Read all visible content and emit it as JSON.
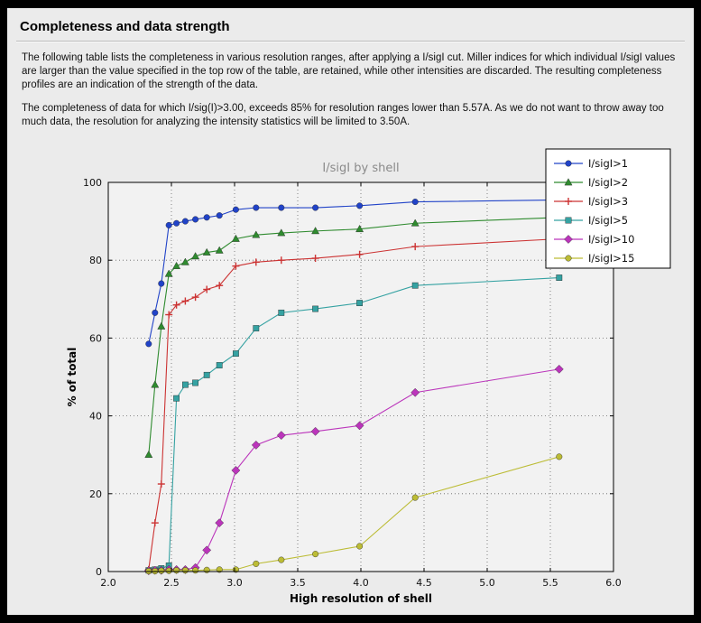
{
  "page": {
    "title": "Completeness and data strength",
    "paragraph1": "The following table lists the completeness in various resolution ranges, after applying a I/sigI cut. Miller indices for which individual I/sigI values are larger than the value specified in the top row of the table, are retained, while other intensities are discarded. The resulting completeness profiles are an indication of the strength of the data.",
    "paragraph2": "The completeness of data for which I/sig(I)>3.00, exceeds  85% for resolution ranges lower than 5.57A. As we do not want to throw away too much data, the resolution for analyzing the intensity statistics will be limited to 3.50A."
  },
  "chart_data": {
    "type": "line",
    "title": "I/sigI by shell",
    "xlabel": "High resolution of shell",
    "ylabel": "% of total",
    "xlim": [
      2.0,
      6.0
    ],
    "ylim": [
      0,
      100
    ],
    "xticks": [
      2.0,
      2.5,
      3.0,
      3.5,
      4.0,
      4.5,
      5.0,
      5.5,
      6.0
    ],
    "yticks": [
      0,
      20,
      40,
      60,
      80,
      100
    ],
    "grid": true,
    "legend_position": "upper right",
    "title_color": "#8a8a8a",
    "x": [
      2.32,
      2.37,
      2.42,
      2.48,
      2.54,
      2.61,
      2.69,
      2.78,
      2.88,
      3.01,
      3.17,
      3.37,
      3.64,
      3.99,
      4.43,
      5.57
    ],
    "series": [
      {
        "name": "I/sigI>1",
        "color": "#2143c8",
        "marker": "circle",
        "values": [
          58.5,
          66.5,
          74,
          89,
          89.5,
          90,
          90.5,
          91,
          91.5,
          93,
          93.5,
          93.5,
          93.5,
          94,
          95,
          95.5
        ]
      },
      {
        "name": "I/sigI>2",
        "color": "#2f8b2f",
        "marker": "triangle",
        "values": [
          30,
          48,
          63,
          76.5,
          78.5,
          79.5,
          81,
          82,
          82.5,
          85.5,
          86.5,
          87,
          87.5,
          88,
          89.5,
          91
        ]
      },
      {
        "name": "I/sigI>3",
        "color": "#cc3333",
        "marker": "plus",
        "values": [
          0.5,
          12.5,
          22.5,
          66,
          68.5,
          69.5,
          70.5,
          72.5,
          73.5,
          78.5,
          79.5,
          80,
          80.5,
          81.5,
          83.5,
          85.5
        ]
      },
      {
        "name": "I/sigI>5",
        "color": "#35a2a2",
        "marker": "square",
        "values": [
          0.3,
          0.5,
          0.8,
          1.5,
          44.5,
          48,
          48.5,
          50.5,
          53,
          56,
          62.5,
          66.5,
          67.5,
          69,
          73.5,
          75.5
        ]
      },
      {
        "name": "I/sigI>10",
        "color": "#bb35bb",
        "marker": "diamond",
        "values": [
          0.2,
          0.3,
          0.3,
          0.5,
          0.5,
          0.5,
          1,
          5.5,
          12.5,
          26,
          32.5,
          35,
          36,
          37.5,
          46,
          52
        ]
      },
      {
        "name": "I/sigI>15",
        "color": "#bcbc35",
        "marker": "circle",
        "values": [
          0.1,
          0.1,
          0.2,
          0.2,
          0.3,
          0.3,
          0.3,
          0.4,
          0.5,
          0.5,
          2,
          3,
          4.5,
          6.5,
          19,
          29.5
        ]
      }
    ]
  }
}
